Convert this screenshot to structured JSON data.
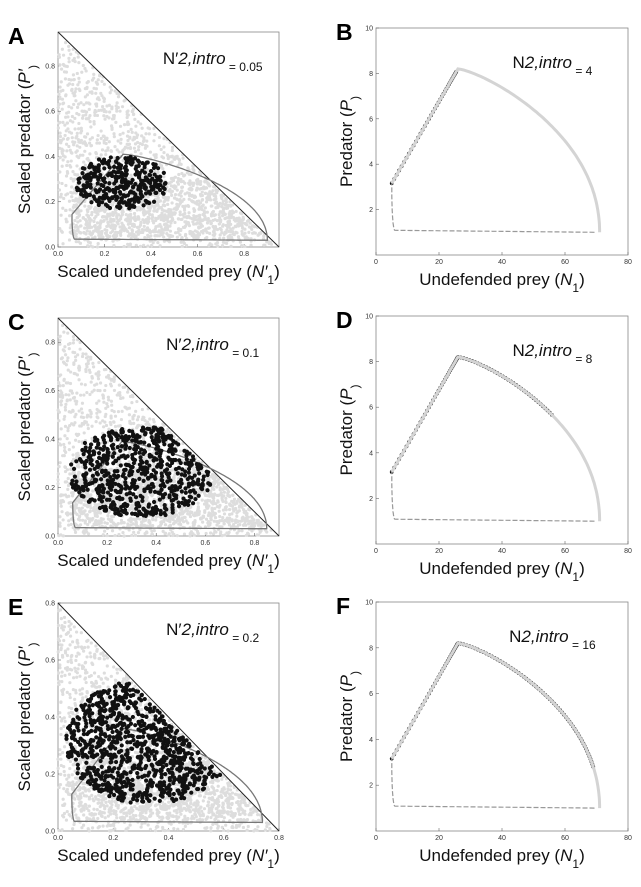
{
  "chart_data": [
    {
      "panel": "A",
      "type": "scatter",
      "xlabel": [
        "Scaled undefended prey (",
        "N′",
        "1",
        ")"
      ],
      "ylabel": [
        "Scaled predator (",
        "P′",
        ")"
      ],
      "annotation": [
        "N′",
        "2,intro",
        " = 0.05"
      ],
      "xlim": [
        0,
        0.95
      ],
      "ylim": [
        0,
        0.95
      ],
      "xticks": [
        0.0,
        0.2,
        0.4,
        0.6,
        0.8
      ],
      "yticks": [
        0.0,
        0.2,
        0.4,
        0.6,
        0.8
      ],
      "tick_labels_x": [
        "0.0",
        "0.2",
        "0.4",
        "0.6",
        "0.8"
      ],
      "tick_labels_y": [
        "0.0",
        "0.2",
        "0.4",
        "0.6",
        "0.8"
      ],
      "boundary": "x + y = 0.95",
      "orbit": {
        "xmin": 0.06,
        "xmax": 0.9,
        "ymin": 0.03,
        "ymax": 0.41,
        "xpeak": 0.28
      },
      "black_region": {
        "xmin": 0.08,
        "xmax": 0.47,
        "ymin": 0.17,
        "ymax": 0.4
      }
    },
    {
      "panel": "B",
      "type": "line",
      "xlabel": [
        "Undefended prey (",
        "N",
        "1",
        ")"
      ],
      "ylabel": [
        "Predator (",
        "P",
        ")"
      ],
      "annotation": [
        "N",
        "2,intro",
        " = 4"
      ],
      "xlim": [
        0,
        80
      ],
      "ylim": [
        0,
        10
      ],
      "xticks": [
        0,
        20,
        40,
        60,
        80
      ],
      "yticks": [
        2,
        4,
        6,
        8,
        10
      ],
      "tick_labels_x": [
        "0",
        "20",
        "40",
        "60",
        "80"
      ],
      "tick_labels_y": [
        "2",
        "4",
        "6",
        "8",
        "10"
      ],
      "orbit": {
        "xmin": 5,
        "xmax": 71,
        "ymin": 1,
        "ymax": 8.2,
        "xpeak": 26
      },
      "black_range": [
        0.0,
        0.14
      ]
    },
    {
      "panel": "C",
      "type": "scatter",
      "xlabel": [
        "Scaled undefended prey (",
        "N′",
        "1",
        ")"
      ],
      "ylabel": [
        "Scaled predator (",
        "P′",
        ")"
      ],
      "annotation": [
        "N′",
        "2,intro",
        " = 0.1"
      ],
      "xlim": [
        0,
        0.9
      ],
      "ylim": [
        0,
        0.9
      ],
      "xticks": [
        0.0,
        0.2,
        0.4,
        0.6,
        0.8
      ],
      "yticks": [
        0.0,
        0.2,
        0.4,
        0.6,
        0.8
      ],
      "tick_labels_x": [
        "0.0",
        "0.2",
        "0.4",
        "0.6",
        "0.8"
      ],
      "tick_labels_y": [
        "0.0",
        "0.2",
        "0.4",
        "0.6",
        "0.8"
      ],
      "boundary": "x + y = 0.9",
      "orbit": {
        "xmin": 0.06,
        "xmax": 0.85,
        "ymin": 0.03,
        "ymax": 0.39,
        "xpeak": 0.26
      },
      "black_region": {
        "xmin": 0.05,
        "xmax": 0.63,
        "ymin": 0.08,
        "ymax": 0.45
      }
    },
    {
      "panel": "D",
      "type": "line",
      "xlabel": [
        "Undefended prey (",
        "N",
        "1",
        ")"
      ],
      "ylabel": [
        "Predator (",
        "P",
        ")"
      ],
      "annotation": [
        "N",
        "2,intro",
        " = 8"
      ],
      "xlim": [
        0,
        80
      ],
      "ylim": [
        0,
        10
      ],
      "xticks": [
        0,
        20,
        40,
        60,
        80
      ],
      "yticks": [
        2,
        4,
        6,
        8,
        10
      ],
      "tick_labels_x": [
        "0",
        "20",
        "40",
        "60",
        "80"
      ],
      "tick_labels_y": [
        "2",
        "4",
        "6",
        "8",
        "10"
      ],
      "orbit": {
        "xmin": 5,
        "xmax": 71,
        "ymin": 1,
        "ymax": 8.2,
        "xpeak": 26
      },
      "black_range": [
        0.0,
        0.3
      ]
    },
    {
      "panel": "E",
      "type": "scatter",
      "xlabel": [
        "Scaled undefended prey (",
        "N′",
        "1",
        ")"
      ],
      "ylabel": [
        "Scaled predator (",
        "P′",
        ")"
      ],
      "annotation": [
        "N′",
        "2,intro",
        " = 0.2"
      ],
      "xlim": [
        0,
        0.8
      ],
      "ylim": [
        0,
        0.8
      ],
      "xticks": [
        0.0,
        0.2,
        0.4,
        0.6,
        0.8
      ],
      "yticks": [
        0.0,
        0.2,
        0.4,
        0.6,
        0.8
      ],
      "tick_labels_x": [
        "0.0",
        "0.2",
        "0.4",
        "0.6",
        "0.8"
      ],
      "tick_labels_y": [
        "0.0",
        "0.2",
        "0.4",
        "0.6",
        "0.8"
      ],
      "boundary": "x + y = 0.8",
      "orbit": {
        "xmin": 0.05,
        "xmax": 0.74,
        "ymin": 0.03,
        "ymax": 0.36,
        "xpeak": 0.23
      },
      "black_region": {
        "xmin": 0.03,
        "xmax": 0.63,
        "ymin": 0.1,
        "ymax": 0.53
      }
    },
    {
      "panel": "F",
      "type": "line",
      "xlabel": [
        "Undefended prey (",
        "N",
        "1",
        ")"
      ],
      "ylabel": [
        "Predator (",
        "P",
        ")"
      ],
      "annotation": [
        "N",
        "2,intro",
        " = 16"
      ],
      "xlim": [
        0,
        80
      ],
      "ylim": [
        0,
        10
      ],
      "xticks": [
        0,
        20,
        40,
        60,
        80
      ],
      "yticks": [
        2,
        4,
        6,
        8,
        10
      ],
      "tick_labels_x": [
        "0",
        "20",
        "40",
        "60",
        "80"
      ],
      "tick_labels_y": [
        "2",
        "4",
        "6",
        "8",
        "10"
      ],
      "orbit": {
        "xmin": 5,
        "xmax": 71,
        "ymin": 1,
        "ymax": 8.2,
        "xpeak": 26
      },
      "black_range": [
        0.0,
        0.4
      ]
    }
  ],
  "colors": {
    "background_points": "#dddddd",
    "highlight_points": "#111111",
    "orbit_line": "#777777",
    "boundary_line": "#222222"
  }
}
